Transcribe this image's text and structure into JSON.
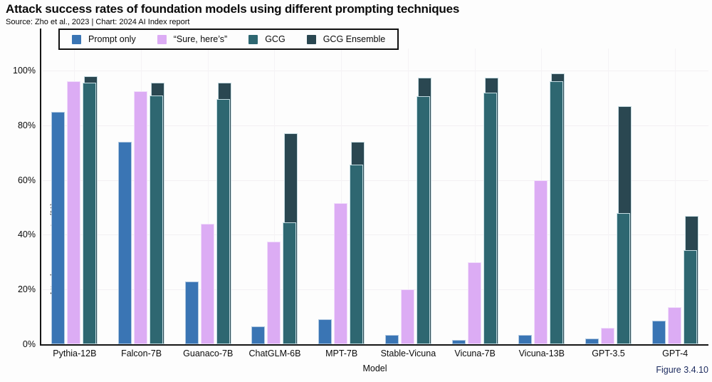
{
  "page": {
    "title": "Attack success rates of foundation models using different prompting techniques",
    "subtitle": "Source: Zho et al., 2023 | Chart: 2024 AI Index report",
    "figure_label": "Figure 3.4.10"
  },
  "chart_data": {
    "type": "bar",
    "title": "Attack success rates of foundation models using different prompting techniques",
    "source": "Zho et al., 2023",
    "credit": "2024 AI Index report",
    "xlabel": "Model",
    "ylabel": "Attack success rate (%)",
    "ylim": [
      0,
      100
    ],
    "yticks": [
      0,
      20,
      40,
      60,
      80,
      100
    ],
    "ytick_suffix": "%",
    "grid": true,
    "legend_position": "top",
    "categories": [
      "Pythia-12B",
      "Falcon-7B",
      "Guanaco-7B",
      "ChatGLM-6B",
      "MPT-7B",
      "Stable-Vicuna",
      "Vicuna-7B",
      "Vicuna-13B",
      "GPT-3.5",
      "GPT-4"
    ],
    "series": [
      {
        "name": "Prompt only",
        "color": "#3a75b4",
        "values": [
          85,
          74,
          23,
          6.5,
          9,
          3.5,
          1.5,
          3.5,
          2,
          8.5
        ]
      },
      {
        "name": "“Sure, here’s”",
        "color": "#dcacf4",
        "values": [
          96,
          92.5,
          44,
          37.5,
          51.5,
          20,
          30,
          60,
          6,
          13.5
        ]
      },
      {
        "name": "GCG",
        "color": "#2e6771",
        "values": [
          95.5,
          91,
          89.5,
          44.5,
          65.5,
          90.5,
          92,
          96,
          48,
          34.5
        ]
      },
      {
        "name": "GCG Ensemble",
        "color": "#2a4751",
        "values": [
          98,
          95.5,
          95.5,
          77,
          74,
          97.5,
          97.5,
          99,
          87,
          47
        ]
      }
    ]
  }
}
